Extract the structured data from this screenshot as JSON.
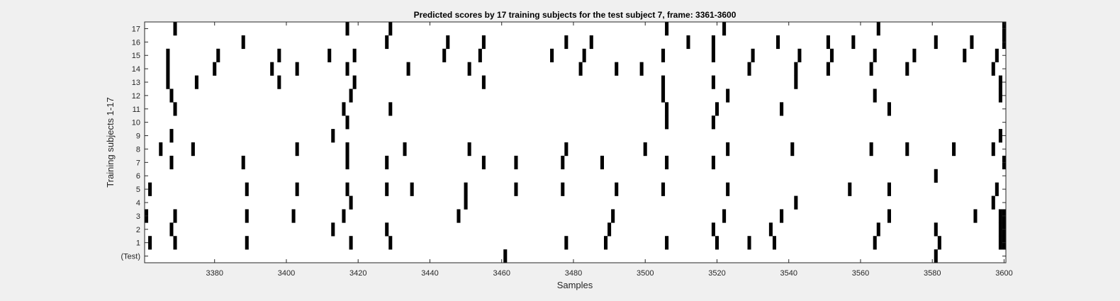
{
  "chart_data": {
    "type": "heatmap",
    "title": "Predicted scores by 17 training subjects for the test subject 7, frame: 3361-3600",
    "xlabel": "Samples",
    "ylabel": "Training subjects 1-17",
    "xlim": [
      3361,
      3600
    ],
    "x_ticks": [
      3380,
      3400,
      3420,
      3440,
      3460,
      3480,
      3500,
      3520,
      3540,
      3560,
      3580,
      3600
    ],
    "y_tick_labels": [
      "(Test)",
      "1",
      "2",
      "3",
      "4",
      "5",
      "6",
      "7",
      "8",
      "9",
      "10",
      "11",
      "12",
      "13",
      "14",
      "15",
      "16",
      "17"
    ],
    "mark_color": "#000000",
    "background_color": "#ffffff",
    "rows": [
      {
        "label": "(Test)",
        "marks": [
          3461,
          3581
        ]
      },
      {
        "label": "1",
        "marks": [
          3362,
          3369,
          3389,
          3418,
          3429,
          3478,
          3489,
          3506,
          3520,
          3529,
          3536,
          3564,
          3582,
          3599,
          3600
        ]
      },
      {
        "label": "2",
        "marks": [
          3368,
          3413,
          3428,
          3490,
          3519,
          3535,
          3565,
          3581,
          3599,
          3600
        ]
      },
      {
        "label": "3",
        "marks": [
          3361,
          3369,
          3389,
          3402,
          3416,
          3448,
          3491,
          3522,
          3538,
          3568,
          3592,
          3599,
          3600
        ]
      },
      {
        "label": "4",
        "marks": [
          3418,
          3450,
          3542,
          3597
        ]
      },
      {
        "label": "5",
        "marks": [
          3362,
          3389,
          3403,
          3417,
          3428,
          3435,
          3450,
          3464,
          3477,
          3492,
          3505,
          3523,
          3557,
          3568,
          3598
        ]
      },
      {
        "label": "6",
        "marks": [
          3581
        ]
      },
      {
        "label": "7",
        "marks": [
          3368,
          3388,
          3417,
          3428,
          3455,
          3464,
          3477,
          3488,
          3506,
          3519,
          3600
        ]
      },
      {
        "label": "8",
        "marks": [
          3365,
          3374,
          3403,
          3417,
          3433,
          3451,
          3478,
          3500,
          3523,
          3541,
          3563,
          3573,
          3586,
          3597
        ]
      },
      {
        "label": "9",
        "marks": [
          3368,
          3413,
          3599
        ]
      },
      {
        "label": "10",
        "marks": [
          3417,
          3506,
          3519
        ]
      },
      {
        "label": "11",
        "marks": [
          3369,
          3416,
          3429,
          3506,
          3520,
          3538,
          3568
        ]
      },
      {
        "label": "12",
        "marks": [
          3368,
          3418,
          3505,
          3523,
          3564,
          3599
        ]
      },
      {
        "label": "13",
        "marks": [
          3367,
          3375,
          3398,
          3419,
          3455,
          3505,
          3519,
          3542,
          3599
        ]
      },
      {
        "label": "14",
        "marks": [
          3367,
          3380,
          3396,
          3403,
          3417,
          3434,
          3451,
          3482,
          3492,
          3499,
          3529,
          3542,
          3551,
          3563,
          3573,
          3597
        ]
      },
      {
        "label": "15",
        "marks": [
          3367,
          3381,
          3398,
          3412,
          3419,
          3444,
          3454,
          3474,
          3483,
          3505,
          3519,
          3530,
          3543,
          3552,
          3564,
          3575,
          3589,
          3598
        ]
      },
      {
        "label": "16",
        "marks": [
          3388,
          3428,
          3445,
          3455,
          3478,
          3485,
          3512,
          3519,
          3537,
          3551,
          3558,
          3581,
          3591,
          3600
        ]
      },
      {
        "label": "17",
        "marks": [
          3369,
          3417,
          3429,
          3506,
          3522,
          3565,
          3600
        ]
      }
    ]
  }
}
